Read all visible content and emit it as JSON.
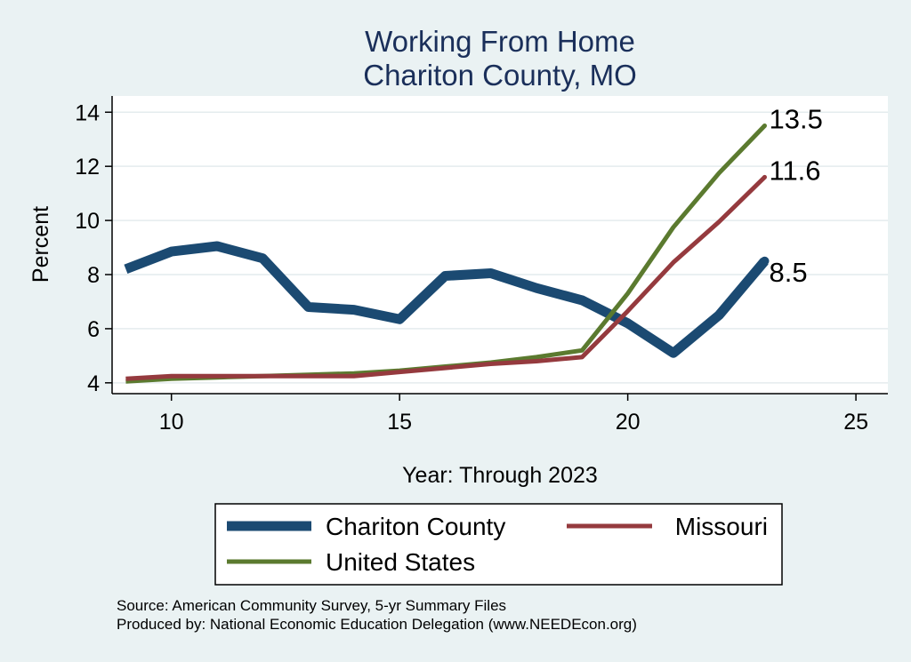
{
  "chart_data": {
    "type": "line",
    "title": [
      "Working From Home",
      "Chariton County, MO"
    ],
    "xlabel": "Year: Through 2023",
    "ylabel": "Percent",
    "xlim": [
      8.7,
      25.7
    ],
    "ylim": [
      3.6,
      14.6
    ],
    "xticks": [
      10,
      15,
      20,
      25
    ],
    "yticks": [
      4,
      6,
      8,
      10,
      12,
      14
    ],
    "x": [
      9,
      10,
      11,
      12,
      13,
      14,
      15,
      16,
      17,
      18,
      19,
      20,
      21,
      22,
      23
    ],
    "series": [
      {
        "name": "Chariton County",
        "color": "#1b4a72",
        "values": [
          8.2,
          8.85,
          9.05,
          8.6,
          6.8,
          6.7,
          6.35,
          7.95,
          8.05,
          7.5,
          7.05,
          6.2,
          5.1,
          6.5,
          8.5
        ],
        "end_label": "8.5"
      },
      {
        "name": "Missouri",
        "color": "#953a3e",
        "values": [
          4.15,
          4.25,
          4.25,
          4.25,
          4.25,
          4.25,
          4.4,
          4.55,
          4.7,
          4.8,
          4.95,
          6.65,
          8.45,
          9.95,
          11.6
        ],
        "end_label": "11.6"
      },
      {
        "name": "United States",
        "color": "#5b7a2f",
        "values": [
          4.05,
          4.15,
          4.2,
          4.25,
          4.3,
          4.35,
          4.45,
          4.6,
          4.75,
          4.95,
          5.2,
          7.3,
          9.75,
          11.75,
          13.5
        ],
        "end_label": "13.5"
      }
    ],
    "legend": {
      "position": "bottom",
      "entries": [
        "Chariton County",
        "Missouri",
        "United States"
      ]
    },
    "grid": true
  },
  "footer": {
    "source": "Source: American Community Survey, 5-yr Summary Files",
    "produced_by": "Produced by: National Economic Education Delegation (www.NEEDEcon.org)"
  },
  "colors": {
    "background": "#eaf2f3",
    "plot_background": "#ffffff",
    "title": "#1a2f5a",
    "grid": "#e4ecee"
  }
}
